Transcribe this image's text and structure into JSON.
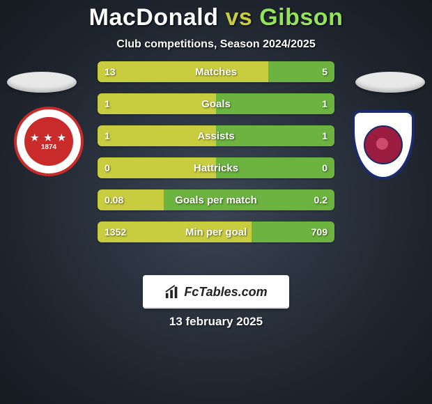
{
  "header": {
    "player1": "MacDonald",
    "vs": "vs",
    "player2": "Gibson",
    "subtitle": "Club competitions, Season 2024/2025",
    "p1_color": "#ffffff",
    "vs_color": "#c8cc3f",
    "p2_color": "#94e35a"
  },
  "colors": {
    "p1_bar": "#c8cc3f",
    "p2_bar": "#6cb33f",
    "bg_center": "#3a4555",
    "bg_edge": "#161b22"
  },
  "stats": [
    {
      "label": "Matches",
      "v1": "13",
      "v2": "5",
      "p1_pct": 72,
      "p2_pct": 28
    },
    {
      "label": "Goals",
      "v1": "1",
      "v2": "1",
      "p1_pct": 50,
      "p2_pct": 50
    },
    {
      "label": "Assists",
      "v1": "1",
      "v2": "1",
      "p1_pct": 50,
      "p2_pct": 50
    },
    {
      "label": "Hattricks",
      "v1": "0",
      "v2": "0",
      "p1_pct": 50,
      "p2_pct": 50
    },
    {
      "label": "Goals per match",
      "v1": "0.08",
      "v2": "0.2",
      "p1_pct": 28,
      "p2_pct": 72
    },
    {
      "label": "Min per goal",
      "v1": "1352",
      "v2": "709",
      "p1_pct": 65,
      "p2_pct": 35
    }
  ],
  "crest_left": {
    "year": "1874"
  },
  "branding": {
    "site": "FcTables.com"
  },
  "date": "13 february 2025"
}
